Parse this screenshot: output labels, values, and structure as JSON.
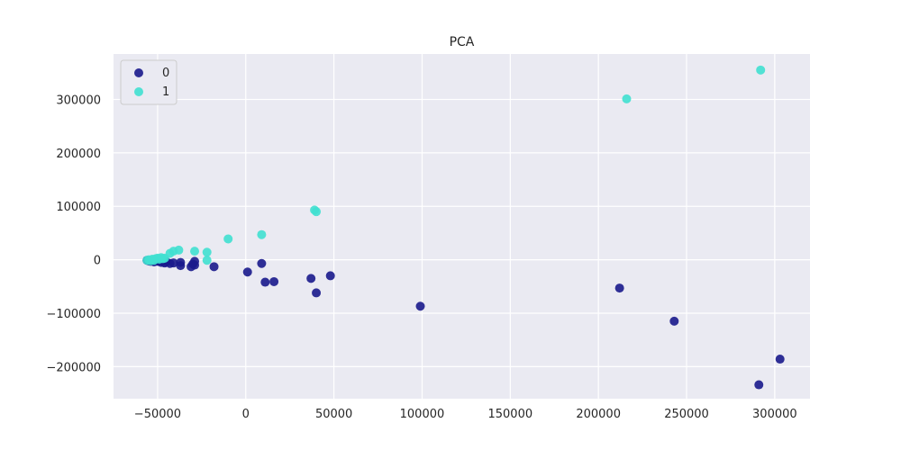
{
  "chart_data": {
    "type": "scatter",
    "title": "PCA",
    "xlabel": "",
    "ylabel": "",
    "xlim": [
      -75000,
      320000
    ],
    "ylim": [
      -260000,
      385000
    ],
    "xticks": [
      -50000,
      0,
      50000,
      100000,
      150000,
      200000,
      250000,
      300000
    ],
    "xtick_labels": [
      "−50000",
      "0",
      "50000",
      "100000",
      "150000",
      "200000",
      "250000",
      "300000"
    ],
    "yticks": [
      -200000,
      -100000,
      0,
      100000,
      200000,
      300000
    ],
    "ytick_labels": [
      "−200000",
      "−100000",
      "0",
      "100000",
      "200000",
      "300000"
    ],
    "grid": true,
    "legend_position": "top-left",
    "series": [
      {
        "name": "0",
        "color": "#1a1a8c",
        "points": [
          [
            -56000,
            -1000
          ],
          [
            -55000,
            -2000
          ],
          [
            -54000,
            -3000
          ],
          [
            -53000,
            -1500
          ],
          [
            -52000,
            -4000
          ],
          [
            -50000,
            -3000
          ],
          [
            -48000,
            -5000
          ],
          [
            -46000,
            -6000
          ],
          [
            -45000,
            -4000
          ],
          [
            -43000,
            -7000
          ],
          [
            -41000,
            -6000
          ],
          [
            -37000,
            -5000
          ],
          [
            -37000,
            -11000
          ],
          [
            -31000,
            -13000
          ],
          [
            -30000,
            -8000
          ],
          [
            -29000,
            -3000
          ],
          [
            -29000,
            -10000
          ],
          [
            -18000,
            -13000
          ],
          [
            1000,
            -23000
          ],
          [
            9000,
            -7000
          ],
          [
            11000,
            -42000
          ],
          [
            16000,
            -41000
          ],
          [
            37000,
            -35000
          ],
          [
            40000,
            -62000
          ],
          [
            48000,
            -30000
          ],
          [
            99000,
            -87000
          ],
          [
            212000,
            -53000
          ],
          [
            243000,
            -115000
          ],
          [
            291000,
            -234000
          ],
          [
            303000,
            -186000
          ]
        ]
      },
      {
        "name": "1",
        "color": "#40e0d0",
        "points": [
          [
            -56000,
            -1000
          ],
          [
            -55000,
            0
          ],
          [
            -54000,
            -2000
          ],
          [
            -53000,
            1000
          ],
          [
            -52000,
            -1000
          ],
          [
            -51000,
            2000
          ],
          [
            -50000,
            3000
          ],
          [
            -49000,
            1000
          ],
          [
            -48000,
            4000
          ],
          [
            -47000,
            2000
          ],
          [
            -46000,
            3000
          ],
          [
            -43000,
            12000
          ],
          [
            -41000,
            16000
          ],
          [
            -38000,
            18000
          ],
          [
            -29000,
            16000
          ],
          [
            -22000,
            14000
          ],
          [
            -22000,
            -1000
          ],
          [
            -10000,
            39000
          ],
          [
            9000,
            47000
          ],
          [
            39000,
            93000
          ],
          [
            40000,
            90000
          ],
          [
            216000,
            301000
          ],
          [
            292000,
            355000
          ]
        ]
      }
    ]
  }
}
